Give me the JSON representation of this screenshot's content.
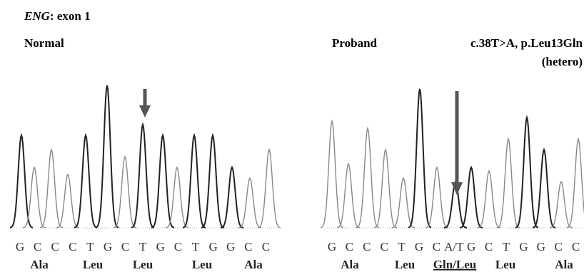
{
  "figure_title": {
    "gene": "ENG",
    "rest": ": exon 1"
  },
  "panels": [
    {
      "label": "Normal",
      "bases": [
        "G",
        "C",
        "C",
        "C",
        "T",
        "G",
        "C",
        "T",
        "G",
        "C",
        "T",
        "G",
        "G",
        "C",
        "C"
      ],
      "amino_acids": [
        "Ala",
        "Leu",
        "Leu",
        "Leu",
        "Ala"
      ]
    },
    {
      "label": "Proband",
      "mutation": "c.38T>A, p.Leu13Gln",
      "zygosity": "(hetero)",
      "bases": [
        "G",
        "C",
        "C",
        "C",
        "T",
        "G",
        "C",
        "A/T",
        "G",
        "C",
        "T",
        "G",
        "G",
        "C",
        "C"
      ],
      "amino_acids": [
        "Ala",
        "Leu",
        "Gln/Leu",
        "Leu",
        "Ala"
      ]
    }
  ]
}
